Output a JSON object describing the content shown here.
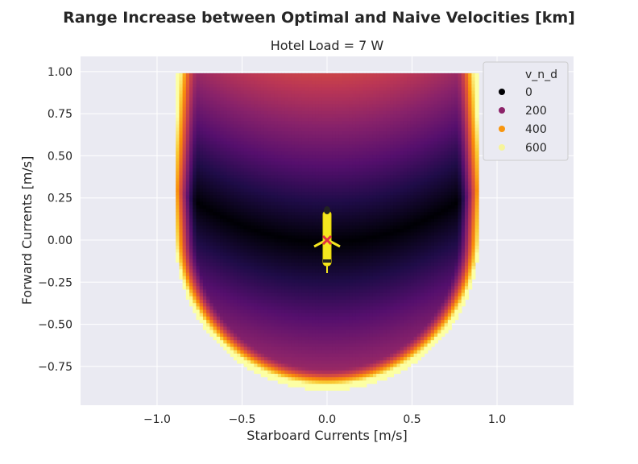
{
  "figure": {
    "title": "Range Increase between Optimal and Naive Velocities [km]"
  },
  "chart_data": {
    "type": "heatmap",
    "title": "Hotel Load = 7 W",
    "xlabel": "Starboard Currents [m/s]",
    "ylabel": "Forward Currents [m/s]",
    "xlim": [
      -1.45,
      1.45
    ],
    "ylim": [
      -0.98,
      1.09
    ],
    "xticks": [
      -1.0,
      -0.5,
      0.0,
      0.5,
      1.0
    ],
    "xtick_labels": [
      "−1.0",
      "−0.5",
      "0.0",
      "0.5",
      "1.0"
    ],
    "yticks": [
      1.0,
      0.75,
      0.5,
      0.25,
      0.0,
      -0.25,
      -0.5,
      -0.75
    ],
    "ytick_labels": [
      "1.00",
      "0.75",
      "0.50",
      "0.25",
      "0.00",
      "−0.25",
      "−0.50",
      "−0.75"
    ],
    "grid": true,
    "colormap": "inferno",
    "domain": {
      "x_range": [
        -0.89,
        0.89
      ],
      "y_range": [
        -0.9,
        1.0
      ],
      "description_shape": "upper rectangle, lower semicircular bottom"
    },
    "value_range": [
      0,
      700
    ],
    "marker": {
      "x": 0.0,
      "y": 0.0,
      "color": "#e03040",
      "shape": "x"
    },
    "legend": {
      "title": "v_n_d",
      "placement": "top-right",
      "entries": [
        {
          "label": "0",
          "color": "#000004"
        },
        {
          "label": "200",
          "color": "#8c2369"
        },
        {
          "label": "400",
          "color": "#f8960f"
        },
        {
          "label": "600",
          "color": "#f6f49b"
        }
      ]
    }
  }
}
